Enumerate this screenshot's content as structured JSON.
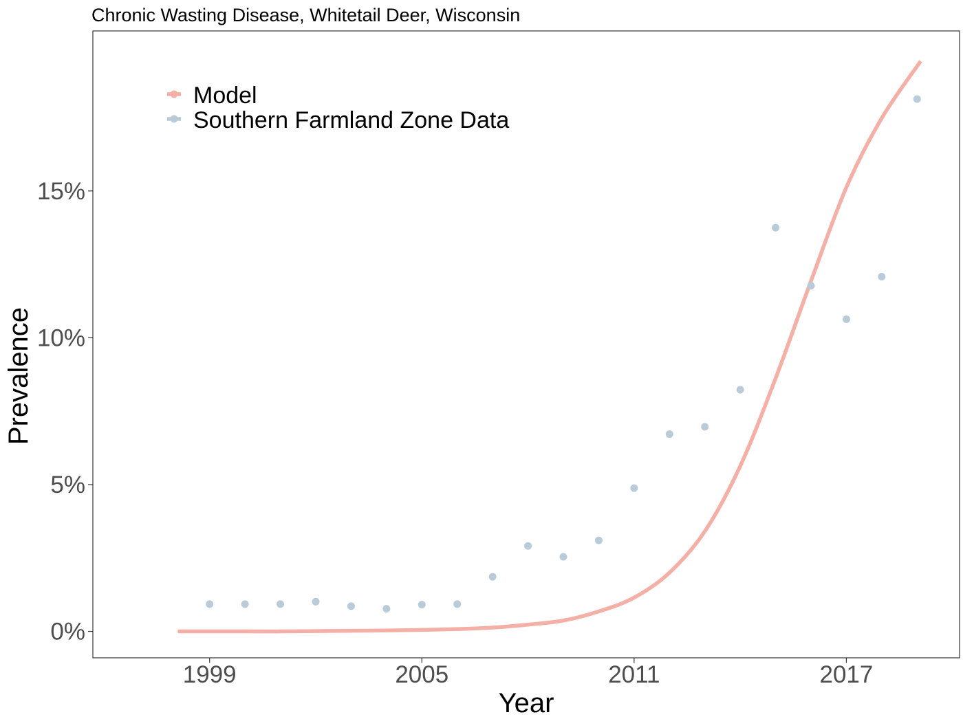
{
  "chart_data": {
    "type": "line",
    "title": "Chronic Wasting Disease, Whitetail Deer, Wisconsin",
    "xlabel": "Year",
    "ylabel": "Prevalence",
    "xlim": [
      1995.7,
      2020.2
    ],
    "ylim": [
      -0.009,
      0.2045
    ],
    "x_ticks": [
      1999,
      2005,
      2011,
      2017
    ],
    "x_tick_labels": [
      "1999",
      "2005",
      "2011",
      "2017"
    ],
    "y_ticks": [
      0,
      0.05,
      0.1,
      0.15
    ],
    "y_tick_labels": [
      "0%",
      "5%",
      "10%",
      "15%"
    ],
    "grid": false,
    "legend_position": "top-left",
    "series": [
      {
        "name": "Model",
        "kind": "line",
        "color": "#F4AFA6",
        "x": [
          1998.1,
          1999,
          2000,
          2001,
          2002,
          2003,
          2004,
          2005,
          2006,
          2007,
          2008,
          2009,
          2010,
          2011,
          2012,
          2013,
          2014,
          2015,
          2016,
          2017,
          2018,
          2019.1
        ],
        "y": [
          0.0,
          0.0,
          0.0,
          0.0,
          0.0001,
          0.0002,
          0.0003,
          0.0005,
          0.0008,
          0.0013,
          0.0023,
          0.0037,
          0.0068,
          0.0115,
          0.02,
          0.0341,
          0.0563,
          0.0862,
          0.1193,
          0.1512,
          0.1748,
          0.1942
        ]
      },
      {
        "name": "Southern Farmland Zone Data",
        "kind": "scatter",
        "color": "#B9CAD8",
        "x": [
          1999,
          2000,
          2001,
          2002,
          2003,
          2004,
          2005,
          2006,
          2007,
          2008,
          2009,
          2010,
          2011,
          2012,
          2013,
          2014,
          2015,
          2016,
          2017,
          2018,
          2019
        ],
        "y": [
          0.0093,
          0.0093,
          0.0093,
          0.0101,
          0.0086,
          0.0077,
          0.0091,
          0.0093,
          0.0186,
          0.0291,
          0.0254,
          0.031,
          0.0488,
          0.0672,
          0.0697,
          0.0823,
          0.1375,
          0.1177,
          0.1063,
          0.1208,
          0.1813
        ]
      }
    ]
  }
}
